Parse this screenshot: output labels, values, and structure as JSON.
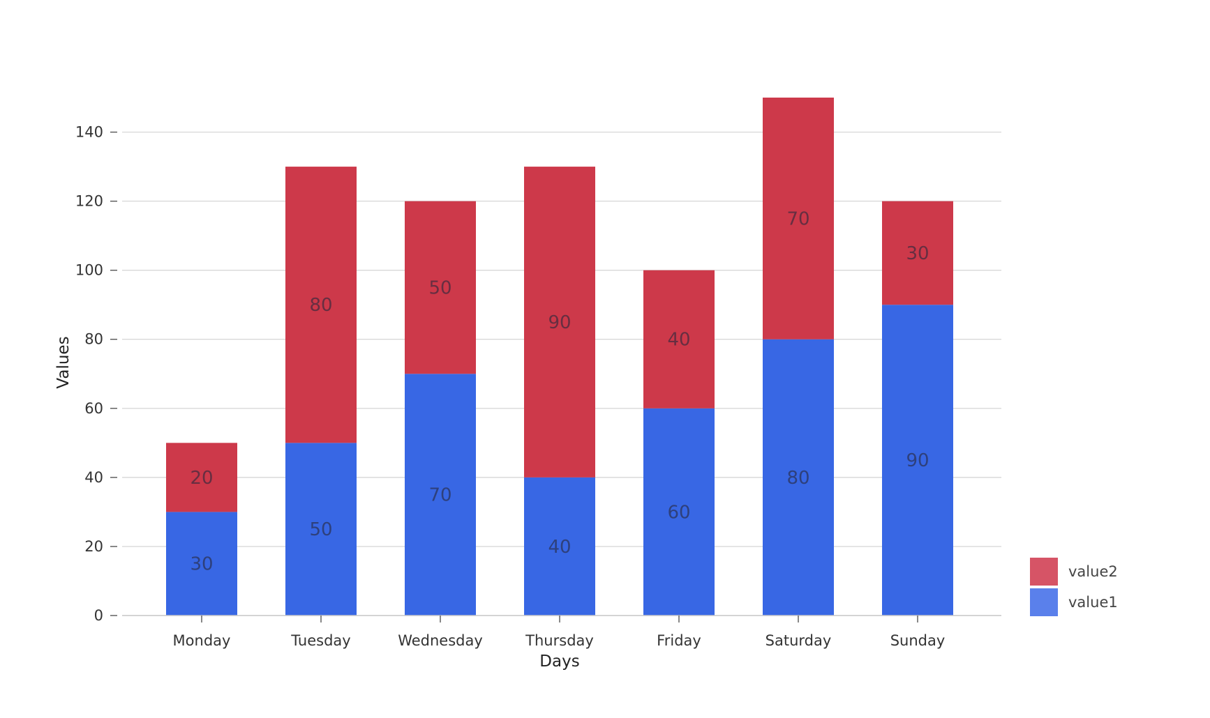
{
  "chart_data": {
    "type": "bar",
    "stacked": true,
    "categories": [
      "Monday",
      "Tuesday",
      "Wednesday",
      "Thursday",
      "Friday",
      "Saturday",
      "Sunday"
    ],
    "series": [
      {
        "name": "value1",
        "values": [
          30,
          50,
          70,
          40,
          60,
          80,
          90
        ],
        "color": "#3867e4"
      },
      {
        "name": "value2",
        "values": [
          20,
          80,
          50,
          90,
          40,
          70,
          30
        ],
        "color": "#cd394a"
      }
    ],
    "title": "",
    "xlabel": "Days",
    "ylabel": "Values",
    "ylim": [
      0,
      150
    ],
    "yticks": [
      0,
      20,
      40,
      60,
      80,
      100,
      120,
      140
    ],
    "grid": true,
    "data_labels": true,
    "legend": {
      "position": "bottom-right",
      "items": [
        {
          "name": "value2",
          "color": "#d65466"
        },
        {
          "name": "value1",
          "color": "#5a80eb"
        }
      ]
    }
  }
}
